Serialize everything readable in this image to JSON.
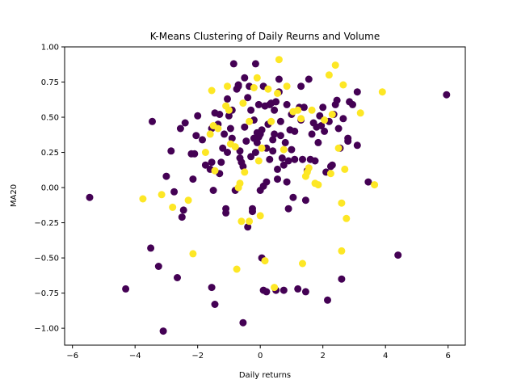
{
  "chart_data": {
    "type": "scatter",
    "title": "K-Means Clustering of Daily Reurns and Volume",
    "xlabel": "Daily returns",
    "ylabel": "MA20",
    "xlim": [
      -6.25,
      6.55
    ],
    "ylim": [
      -1.12,
      1.0
    ],
    "xticks": [
      -6,
      -4,
      -2,
      0,
      2,
      4,
      6
    ],
    "yticks": [
      -1.0,
      -0.75,
      -0.5,
      -0.25,
      0.0,
      0.25,
      0.5,
      0.75,
      1.0
    ],
    "xtick_labels": [
      "−6",
      "−4",
      "−2",
      "0",
      "2",
      "4",
      "6"
    ],
    "ytick_labels": [
      "−1.00",
      "−0.75",
      "−0.50",
      "−0.25",
      "0.00",
      "0.25",
      "0.50",
      "0.75",
      "1.00"
    ],
    "grid": false,
    "legend": "none",
    "series": [
      {
        "color": "#440154",
        "points": [
          [
            -5.45,
            -0.07
          ],
          [
            -4.3,
            -0.72
          ],
          [
            -3.45,
            0.47
          ],
          [
            -3.5,
            -0.43
          ],
          [
            -3.25,
            -0.56
          ],
          [
            -3.1,
            -1.02
          ],
          [
            -3.0,
            0.08
          ],
          [
            -2.85,
            0.26
          ],
          [
            -2.75,
            -0.03
          ],
          [
            -2.65,
            -0.64
          ],
          [
            -2.55,
            0.42
          ],
          [
            -2.5,
            -0.21
          ],
          [
            -2.45,
            -0.16
          ],
          [
            -2.4,
            0.46
          ],
          [
            -2.2,
            0.24
          ],
          [
            -2.15,
            0.06
          ],
          [
            -2.1,
            0.24
          ],
          [
            -2.05,
            0.37
          ],
          [
            -2.0,
            0.51
          ],
          [
            -1.85,
            0.34
          ],
          [
            -1.75,
            0.16
          ],
          [
            -1.6,
            0.13
          ],
          [
            -1.55,
            0.42
          ],
          [
            -1.55,
            0.18
          ],
          [
            -1.5,
            -0.02
          ],
          [
            -1.55,
            -0.71
          ],
          [
            -1.45,
            -0.83
          ],
          [
            -1.45,
            0.53
          ],
          [
            -1.35,
            0.45
          ],
          [
            -1.3,
            0.52
          ],
          [
            -1.3,
            0.1
          ],
          [
            -1.25,
            0.18
          ],
          [
            -1.2,
            0.28
          ],
          [
            -1.15,
            0.38
          ],
          [
            -1.1,
            -0.15
          ],
          [
            -1.1,
            -0.18
          ],
          [
            -1.05,
            0.25
          ],
          [
            -1.05,
            0.63
          ],
          [
            -1.0,
            0.51
          ],
          [
            -0.95,
            0.42
          ],
          [
            -0.9,
            0.55
          ],
          [
            -0.9,
            0.35
          ],
          [
            -0.85,
            0.88
          ],
          [
            -0.8,
            -0.02
          ],
          [
            -0.75,
            0.7
          ],
          [
            -0.7,
            0.73
          ],
          [
            -0.7,
            0.72
          ],
          [
            -0.65,
            0.26
          ],
          [
            -0.65,
            0.21
          ],
          [
            -0.6,
            0.18
          ],
          [
            -0.55,
            0.15
          ],
          [
            -0.55,
            -0.96
          ],
          [
            -0.5,
            0.78
          ],
          [
            -0.5,
            0.43
          ],
          [
            -0.45,
            0.33
          ],
          [
            -0.4,
            0.64
          ],
          [
            -0.4,
            -0.28
          ],
          [
            -0.35,
            0.72
          ],
          [
            -0.3,
            0.55
          ],
          [
            -0.3,
            0.22
          ],
          [
            -0.25,
            -0.15
          ],
          [
            -0.25,
            -0.17
          ],
          [
            -0.2,
            0.35
          ],
          [
            -0.2,
            0.48
          ],
          [
            -0.15,
            0.88
          ],
          [
            -0.15,
            0.25
          ],
          [
            -0.1,
            0.39
          ],
          [
            -0.1,
            0.32
          ],
          [
            -0.05,
            0.59
          ],
          [
            -0.05,
            0.36
          ],
          [
            0.0,
            0.38
          ],
          [
            0.0,
            -0.02
          ],
          [
            0.05,
            0.41
          ],
          [
            0.05,
            -0.5
          ],
          [
            0.1,
            -0.73
          ],
          [
            0.1,
            0.72
          ],
          [
            0.1,
            0.01
          ],
          [
            0.15,
            0.58
          ],
          [
            0.2,
            0.04
          ],
          [
            0.2,
            0.28
          ],
          [
            0.2,
            -0.74
          ],
          [
            0.25,
            0.45
          ],
          [
            0.3,
            0.59
          ],
          [
            0.3,
            0.2
          ],
          [
            0.35,
            0.6
          ],
          [
            0.4,
            0.34
          ],
          [
            0.4,
            0.26
          ],
          [
            0.45,
            0.38
          ],
          [
            0.45,
            0.55
          ],
          [
            0.5,
            -0.73
          ],
          [
            0.5,
            0.61
          ],
          [
            0.55,
            0.13
          ],
          [
            0.55,
            0.06
          ],
          [
            0.6,
            0.68
          ],
          [
            0.6,
            0.77
          ],
          [
            0.65,
            0.47
          ],
          [
            0.65,
            0.37
          ],
          [
            0.7,
            0.21
          ],
          [
            0.75,
            -0.73
          ],
          [
            0.75,
            0.16
          ],
          [
            0.8,
            0.32
          ],
          [
            0.85,
            0.59
          ],
          [
            0.85,
            0.04
          ],
          [
            0.9,
            -0.15
          ],
          [
            0.9,
            0.19
          ],
          [
            0.95,
            0.41
          ],
          [
            1.0,
            0.52
          ],
          [
            1.0,
            0.27
          ],
          [
            1.05,
            -0.07
          ],
          [
            1.1,
            0.4
          ],
          [
            1.1,
            0.2
          ],
          [
            1.2,
            -0.72
          ],
          [
            1.25,
            0.57
          ],
          [
            1.3,
            0.72
          ],
          [
            1.3,
            0.48
          ],
          [
            1.35,
            0.2
          ],
          [
            1.4,
            0.57
          ],
          [
            1.45,
            -0.09
          ],
          [
            1.45,
            -0.74
          ],
          [
            1.5,
            0.12
          ],
          [
            1.55,
            0.77
          ],
          [
            1.6,
            0.2
          ],
          [
            1.65,
            0.38
          ],
          [
            1.7,
            0.46
          ],
          [
            1.75,
            0.19
          ],
          [
            1.8,
            0.43
          ],
          [
            1.85,
            0.32
          ],
          [
            1.9,
            0.51
          ],
          [
            1.95,
            0.44
          ],
          [
            2.0,
            0.57
          ],
          [
            2.05,
            0.4
          ],
          [
            2.1,
            0.11
          ],
          [
            2.15,
            -0.8
          ],
          [
            2.2,
            0.47
          ],
          [
            2.25,
            0.15
          ],
          [
            2.3,
            0.16
          ],
          [
            2.35,
            0.52
          ],
          [
            2.4,
            0.59
          ],
          [
            2.45,
            0.62
          ],
          [
            2.5,
            0.42
          ],
          [
            2.55,
            0.28
          ],
          [
            2.6,
            -0.65
          ],
          [
            2.65,
            0.49
          ],
          [
            2.8,
            0.35
          ],
          [
            2.8,
            0.33
          ],
          [
            2.85,
            0.61
          ],
          [
            2.95,
            0.59
          ],
          [
            3.1,
            0.68
          ],
          [
            3.1,
            0.3
          ],
          [
            3.45,
            0.04
          ],
          [
            4.4,
            -0.48
          ],
          [
            5.95,
            0.66
          ]
        ]
      },
      {
        "color": "#fde725",
        "points": [
          [
            -3.75,
            -0.08
          ],
          [
            -3.15,
            -0.05
          ],
          [
            -2.8,
            -0.14
          ],
          [
            -2.3,
            -0.09
          ],
          [
            -2.15,
            -0.47
          ],
          [
            -1.75,
            0.25
          ],
          [
            -1.6,
            0.38
          ],
          [
            -1.55,
            0.69
          ],
          [
            -1.5,
            0.44
          ],
          [
            -1.45,
            0.12
          ],
          [
            -1.35,
            0.42
          ],
          [
            -1.1,
            0.58
          ],
          [
            -1.05,
            0.72
          ],
          [
            -1.0,
            0.55
          ],
          [
            -0.95,
            0.31
          ],
          [
            -0.8,
            0.29
          ],
          [
            -0.75,
            -0.58
          ],
          [
            -0.7,
            0.0
          ],
          [
            -0.65,
            0.03
          ],
          [
            -0.6,
            -0.24
          ],
          [
            -0.55,
            0.6
          ],
          [
            -0.5,
            0.11
          ],
          [
            -0.35,
            0.47
          ],
          [
            -0.35,
            -0.24
          ],
          [
            -0.2,
            0.71
          ],
          [
            -0.1,
            0.78
          ],
          [
            -0.05,
            0.19
          ],
          [
            0.0,
            -0.2
          ],
          [
            0.05,
            0.28
          ],
          [
            0.15,
            -0.52
          ],
          [
            0.25,
            0.7
          ],
          [
            0.35,
            0.47
          ],
          [
            0.45,
            -0.71
          ],
          [
            0.55,
            0.67
          ],
          [
            0.6,
            0.91
          ],
          [
            0.75,
            0.27
          ],
          [
            0.85,
            0.72
          ],
          [
            1.05,
            0.54
          ],
          [
            1.2,
            0.55
          ],
          [
            1.3,
            0.49
          ],
          [
            1.35,
            -0.54
          ],
          [
            1.45,
            0.08
          ],
          [
            1.5,
            0.11
          ],
          [
            1.55,
            0.14
          ],
          [
            1.65,
            0.55
          ],
          [
            1.75,
            0.03
          ],
          [
            1.85,
            0.02
          ],
          [
            2.05,
            0.48
          ],
          [
            2.2,
            0.8
          ],
          [
            2.25,
            0.1
          ],
          [
            2.3,
            0.52
          ],
          [
            2.4,
            0.87
          ],
          [
            2.5,
            0.28
          ],
          [
            2.6,
            -0.11
          ],
          [
            2.6,
            -0.45
          ],
          [
            2.65,
            0.73
          ],
          [
            2.7,
            0.13
          ],
          [
            2.75,
            -0.22
          ],
          [
            3.2,
            0.53
          ],
          [
            3.65,
            0.02
          ],
          [
            3.9,
            0.68
          ]
        ]
      }
    ]
  }
}
